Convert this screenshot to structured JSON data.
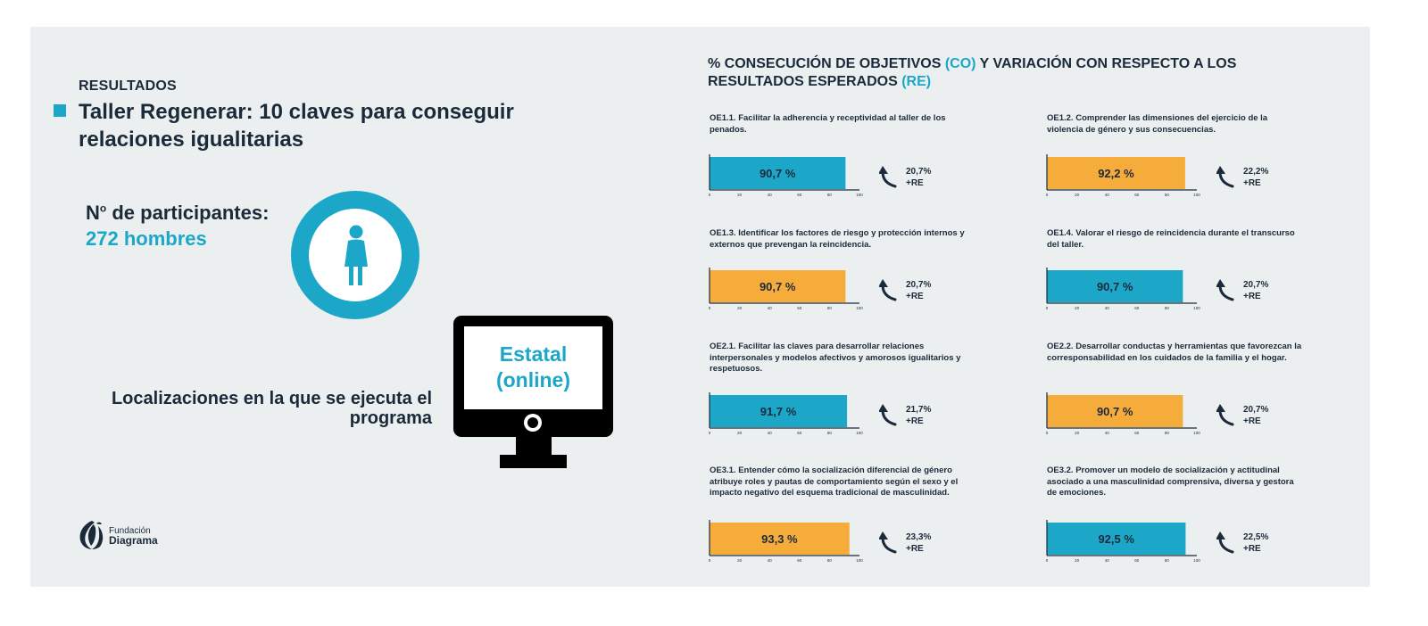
{
  "left": {
    "section_label": "RESULTADOS",
    "title": "Taller Regenerar: 10 claves para conseguir relaciones igualitarias",
    "participants_label": "N",
    "participants_sup": "o",
    "participants_label_rest": " de participantes:",
    "participants_value": "272 hombres",
    "locations_label": "Localizaciones en la que se ejecuta el programa",
    "monitor_text": "Estatal (online)",
    "logo_line1": "Fundación",
    "logo_line2": "Diagrama",
    "icons": [
      "person-icon",
      "monitor-icon",
      "logo-icon",
      "arrow-up-icon"
    ]
  },
  "heading": {
    "part1": "% CONSECUCIÓN DE OBJETIVOS ",
    "co": "(CO)",
    "part2": " Y VARIACIÓN CON RESPECTO A LOS RESULTADOS ESPERADOS ",
    "re": "(RE)"
  },
  "colors": {
    "blue": "#1ca7c9",
    "orange": "#f5ac3b",
    "text": "#1b2a3a",
    "panel": "#ebeff0"
  },
  "chart_data": [
    {
      "type": "bar",
      "id": "OE1.1",
      "description": "OE1.1. Facilitar la adherencia y receptividad al taller de los penados.",
      "value": 90.7,
      "value_label": "90,7 %",
      "variation": "20,7%",
      "variation_suffix": "+RE",
      "color": "blue",
      "xlim": [
        0,
        100
      ],
      "ticks": [
        "0",
        "20",
        "40",
        "60",
        "80",
        "100"
      ]
    },
    {
      "type": "bar",
      "id": "OE1.2",
      "description": "OE1.2. Comprender las dimensiones del ejercicio de la violencia de género y sus consecuencias.",
      "value": 92.2,
      "value_label": "92,2 %",
      "variation": "22,2%",
      "variation_suffix": "+RE",
      "color": "orange",
      "xlim": [
        0,
        100
      ],
      "ticks": [
        "0",
        "20",
        "40",
        "60",
        "80",
        "100"
      ]
    },
    {
      "type": "bar",
      "id": "OE1.3",
      "description": "OE1.3. Identificar los factores de riesgo y protección internos y externos que prevengan la reincidencia.",
      "value": 90.7,
      "value_label": "90,7 %",
      "variation": "20,7%",
      "variation_suffix": "+RE",
      "color": "orange",
      "xlim": [
        0,
        100
      ],
      "ticks": [
        "0",
        "20",
        "40",
        "60",
        "80",
        "100"
      ]
    },
    {
      "type": "bar",
      "id": "OE1.4",
      "description": "OE1.4. Valorar el riesgo de reincidencia durante el transcurso del taller.",
      "value": 90.7,
      "value_label": "90,7 %",
      "variation": "20,7%",
      "variation_suffix": "+RE",
      "color": "blue",
      "xlim": [
        0,
        100
      ],
      "ticks": [
        "0",
        "20",
        "40",
        "60",
        "80",
        "100"
      ]
    },
    {
      "type": "bar",
      "id": "OE2.1",
      "description": "OE2.1. Facilitar las claves para desarrollar relaciones interpersonales y modelos afectivos y amorosos igualitarios y respetuosos.",
      "value": 91.7,
      "value_label": "91,7 %",
      "variation": "21,7%",
      "variation_suffix": "+RE",
      "color": "blue",
      "xlim": [
        0,
        100
      ],
      "ticks": [
        "0",
        "20",
        "40",
        "60",
        "80",
        "100"
      ]
    },
    {
      "type": "bar",
      "id": "OE2.2",
      "description": "OE2.2. Desarrollar conductas y herramientas que favorezcan la corresponsabilidad en los cuidados de la familia y el hogar.",
      "value": 90.7,
      "value_label": "90,7 %",
      "variation": "20,7%",
      "variation_suffix": "+RE",
      "color": "orange",
      "xlim": [
        0,
        100
      ],
      "ticks": [
        "0",
        "20",
        "40",
        "60",
        "80",
        "100"
      ]
    },
    {
      "type": "bar",
      "id": "OE3.1",
      "description": "OE3.1. Entender cómo la socialización diferencial de género atribuye roles y pautas de comportamiento según el sexo y el impacto negativo del esquema tradicional de masculinidad.",
      "value": 93.3,
      "value_label": "93,3 %",
      "variation": "23,3%",
      "variation_suffix": "+RE",
      "color": "orange",
      "xlim": [
        0,
        100
      ],
      "ticks": [
        "0",
        "20",
        "40",
        "60",
        "80",
        "100"
      ]
    },
    {
      "type": "bar",
      "id": "OE3.2",
      "description": "OE3.2. Promover un modelo de socialización y actitudinal asociado a una masculinidad comprensiva, diversa y gestora de emociones.",
      "value": 92.5,
      "value_label": "92,5 %",
      "variation": "22,5%",
      "variation_suffix": "+RE",
      "color": "blue",
      "xlim": [
        0,
        100
      ],
      "ticks": [
        "0",
        "20",
        "40",
        "60",
        "80",
        "100"
      ]
    }
  ]
}
